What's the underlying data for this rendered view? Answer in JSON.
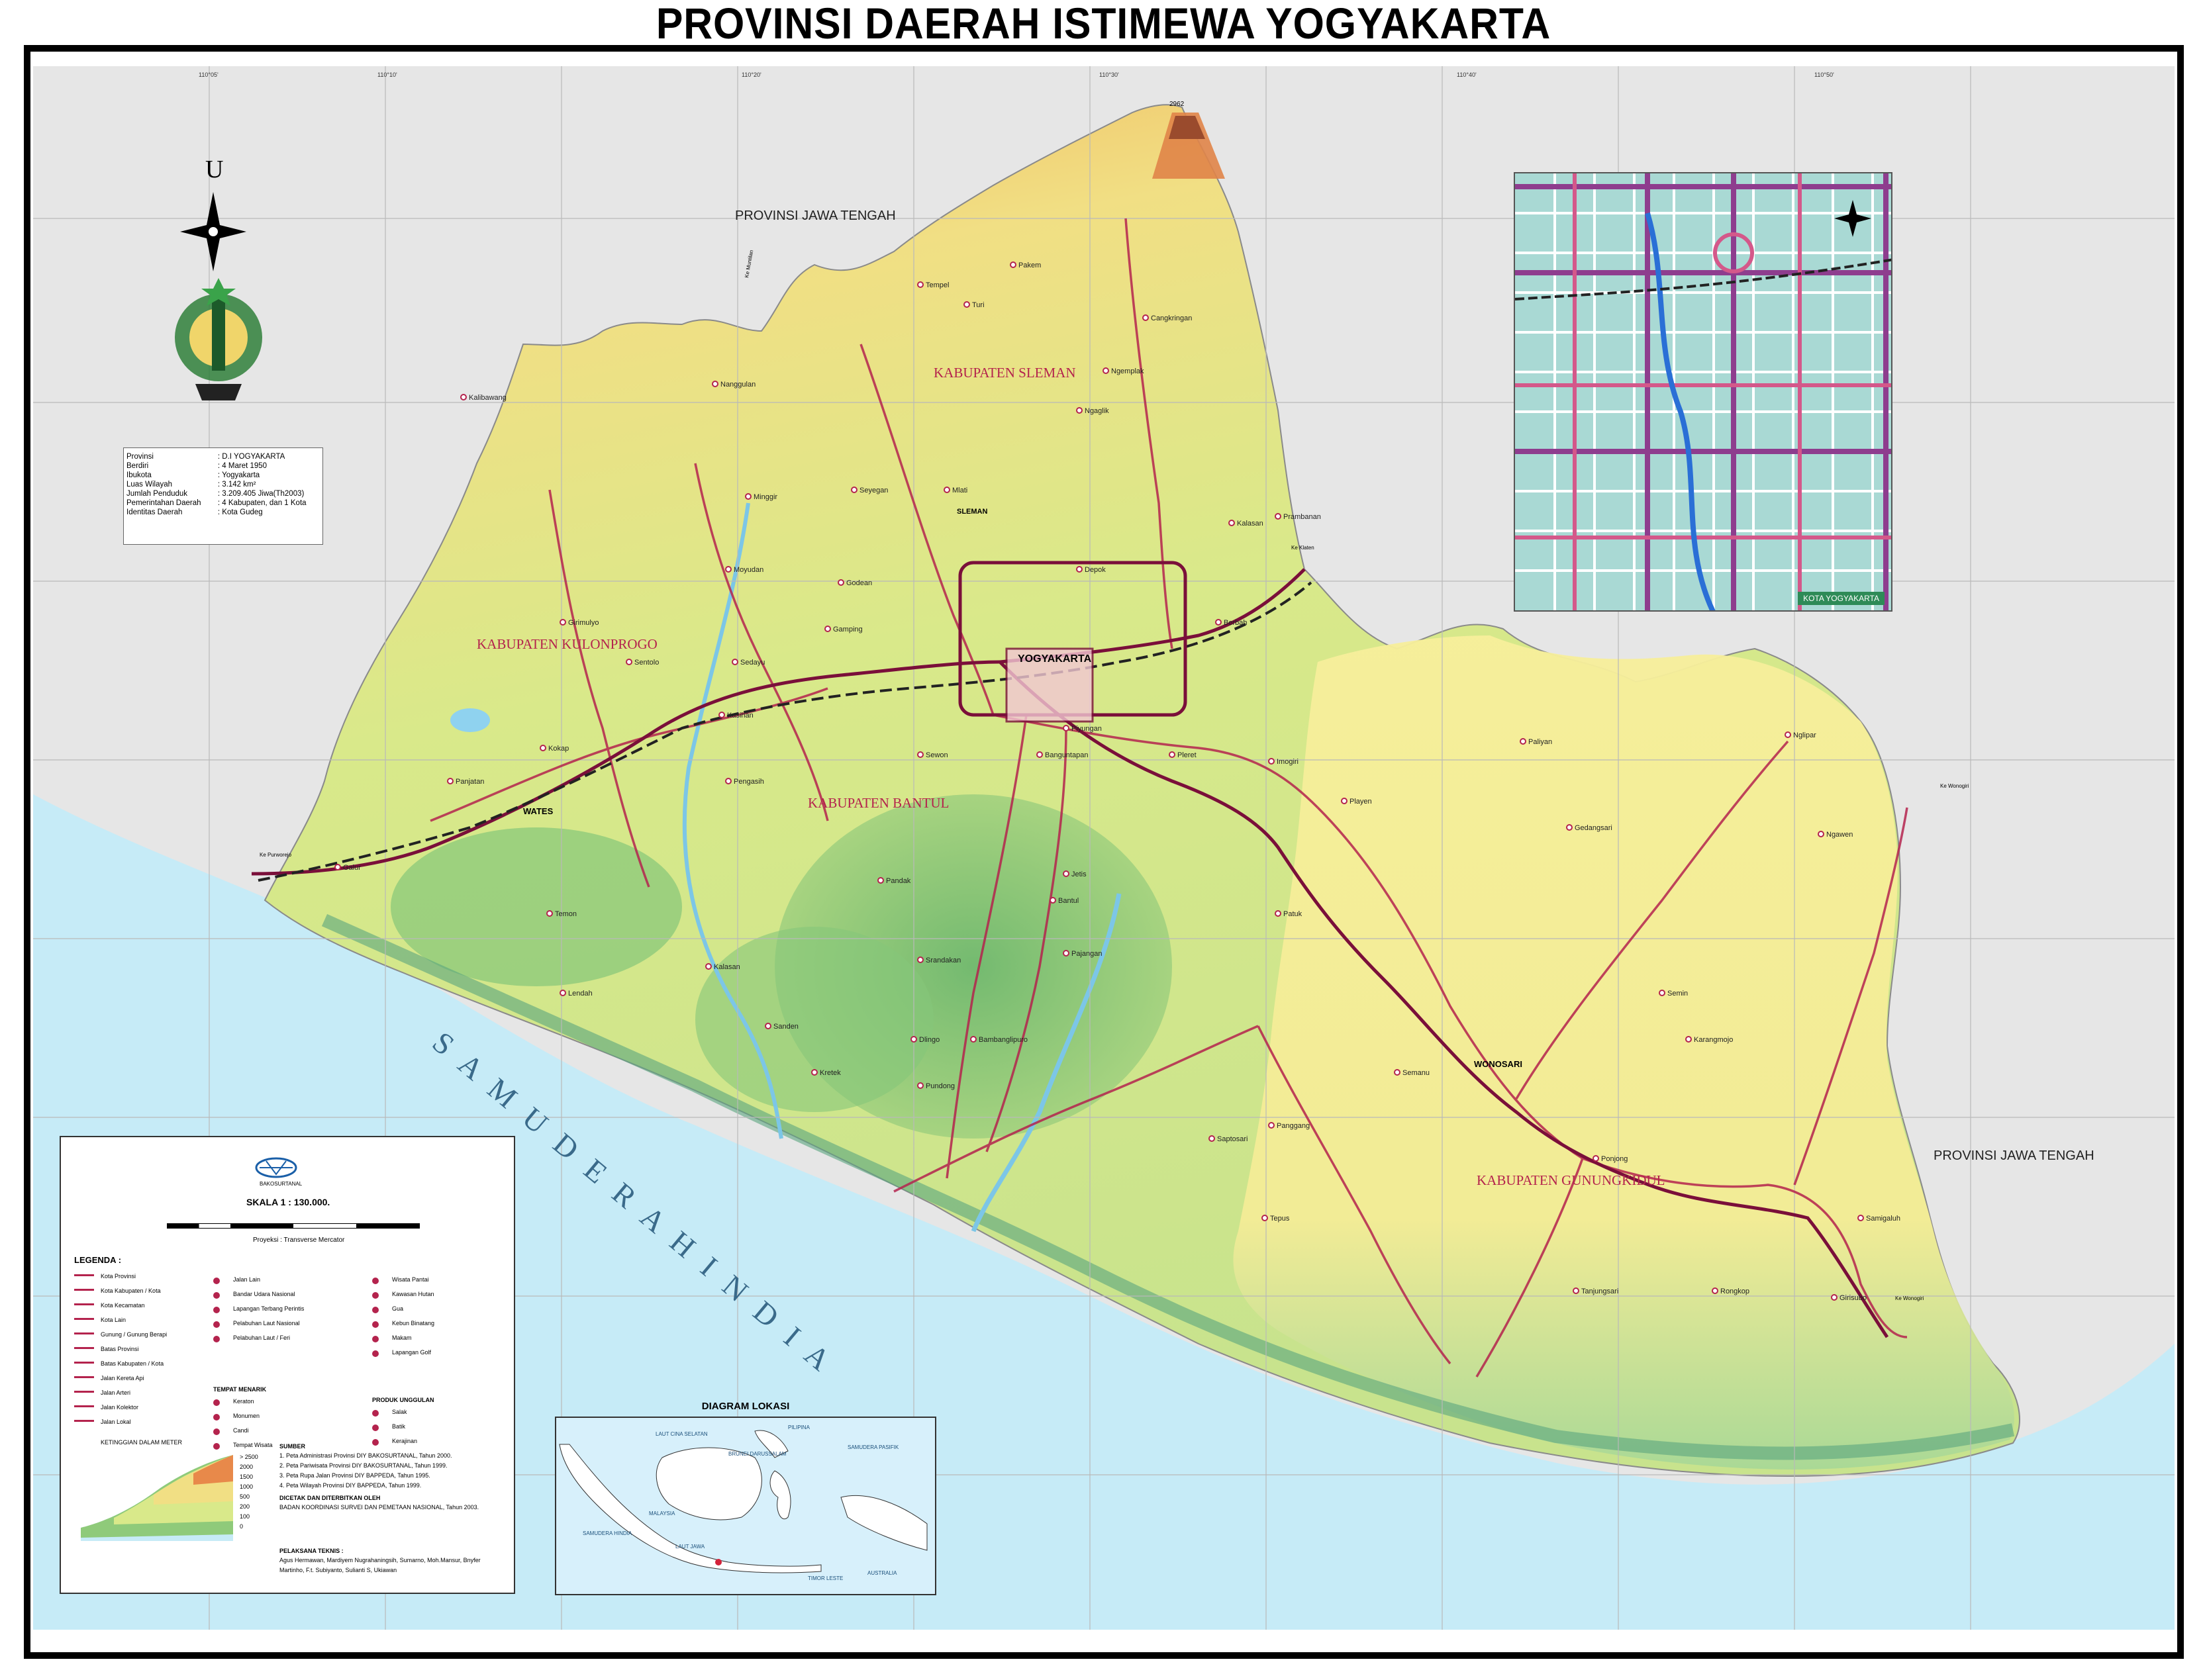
{
  "title": "PROVINSI DAERAH ISTIMEWA YOGYAKARTA",
  "north_letter": "U",
  "neighbours": {
    "north": "PROVINSI JAWA TENGAH",
    "east": "PROVINSI JAWA TENGAH"
  },
  "sea_name": "S A M U D E R A   H I N D I A",
  "regencies": {
    "sleman": "KABUPATEN SLEMAN",
    "kulonprogo": "KABUPATEN KULONPROGO",
    "bantul": "KABUPATEN BANTUL",
    "gunungkidul": "KABUPATEN GUNUNGKIDUL"
  },
  "cities": {
    "yogyakarta": "YOGYAKARTA",
    "wonosari": "WONOSARI",
    "wates": "WATES",
    "sleman": "SLEMAN"
  },
  "towns": [
    "Tempel",
    "Turi",
    "Pakem",
    "Cangkringan",
    "Ngemplak",
    "Ngaglik",
    "Kalasan",
    "Prambanan",
    "Berbah",
    "Depok",
    "Mlati",
    "Seyegan",
    "Minggir",
    "Moyudan",
    "Godean",
    "Gamping",
    "Sedayu",
    "Kasihan",
    "Sewon",
    "Banguntapan",
    "Piyungan",
    "Pleret",
    "Imogiri",
    "Jetis",
    "Bantul",
    "Pajangan",
    "Pandak",
    "Srandakan",
    "Sanden",
    "Kretek",
    "Pundong",
    "Bambanglipuro",
    "Dlingo",
    "Patuk",
    "Playen",
    "Semanu",
    "Ponjong",
    "Karangmojo",
    "Semin",
    "Ngawen",
    "Nglipar",
    "Gedangsari",
    "Paliyan",
    "Panggang",
    "Saptosari",
    "Tepus",
    "Tanjungsari",
    "Rongkop",
    "Girisubo",
    "Samigaluh",
    "Kalibawang",
    "Nanggulan",
    "Girimulyo",
    "Sentolo",
    "Pengasih",
    "Kokap",
    "Panjatan",
    "Temon",
    "Galur",
    "Lendah",
    "Kalasan"
  ],
  "routes": {
    "to_klaten": "Ke Klaten",
    "to_wonogiri_1": "Ke Wonogiri",
    "to_wonogiri_2": "Ke Wonogiri",
    "to_purworejo": "Ke Purworejo",
    "to_muntilan": "Ke Muntilan"
  },
  "peak": "2962",
  "inset": {
    "label": "KOTA YOGYAKARTA"
  },
  "info_box": {
    "rows": [
      {
        "k": "Provinsi",
        "v": ": D.I YOGYAKARTA"
      },
      {
        "k": "Berdiri",
        "v": ": 4 Maret 1950"
      },
      {
        "k": "Ibukota",
        "v": ": Yogyakarta"
      },
      {
        "k": "Luas Wilayah",
        "v": ": 3.142 km²"
      },
      {
        "k": "Jumlah Penduduk",
        "v": ": 3.209.405 Jiwa(Th2003)"
      },
      {
        "k": "Pemerintahan Daerah",
        "v": ": 4 Kabupaten, dan 1 Kota"
      },
      {
        "k": "Identitas Daerah",
        "v": ": Kota Gudeg"
      }
    ]
  },
  "legend": {
    "agency": "BAKOSURTANAL",
    "scale": "SKALA  1 : 130.000.",
    "projection": "Proyeksi : Transverse Mercator",
    "heading": "LEGENDA :",
    "col1": [
      "Kota Provinsi",
      "Kota Kabupaten / Kota",
      "Kota Kecamatan",
      "Kota Lain",
      "Gunung / Gunung Berapi",
      "Batas Provinsi",
      "Batas Kabupaten / Kota",
      "Jalan Kereta Api",
      "Jalan Arteri",
      "Jalan Kolektor",
      "Jalan Lokal"
    ],
    "col2": [
      "Jalan Lain",
      "Bandar Udara Nasional",
      "Lapangan Terbang Perintis",
      "Pelabuhan Laut Nasional",
      "Pelabuhan Laut / Feri"
    ],
    "col2_heading": "TEMPAT MENARIK",
    "col2b": [
      "Keraton",
      "Monumen",
      "Candi",
      "Tempat Wisata"
    ],
    "col3": [
      "Wisata Pantai",
      "Kawasan Hutan",
      "Gua",
      "Kebun Binatang",
      "Makam",
      "Lapangan Golf"
    ],
    "col3_heading": "PRODUK UNGGULAN",
    "col3b": [
      "Salak",
      "Batik",
      "Kerajinan"
    ],
    "elevation_title": "KETINGGIAN DALAM METER",
    "elevations": [
      "> 2500",
      "2000",
      "1500",
      "1000",
      "500",
      "200",
      "100",
      "0"
    ],
    "sources_title": "SUMBER",
    "sources": [
      "1. Peta Administrasi Provinsi DIY BAKOSURTANAL, Tahun 2000.",
      "2. Peta Pariwisata Provinsi DIY BAKOSURTANAL, Tahun 1999.",
      "3. Peta Rupa Jalan Provinsi DIY BAPPEDA, Tahun 1995.",
      "4. Peta Wilayah Provinsi DIY BAPPEDA, Tahun 1999."
    ],
    "printed_title": "DICETAK DAN DITERBITKAN OLEH",
    "printed": "BADAN KOORDINASI SURVEI DAN PEMETAAN NASIONAL, Tahun 2003.",
    "staff_title": "PELAKSANA TEKNIS :",
    "staff": "Agus Hermawan, Mardiyem Nugrahaningsih, Sumarno, Moh.Mansur, Bnyfer Martinho, F.t. Subiyanto, Sulianti S, Ukiawan"
  },
  "location_diagram": {
    "title": "DIAGRAM LOKASI",
    "labels": [
      "LAUT CINA SELATAN",
      "BRUNEI DARUSSALAM",
      "MALAYSIA",
      "PILIPINA",
      "SAMUDERA PASIFIK",
      "LAUT JAWA",
      "SAMUDERA HINDIA",
      "TIMOR LESTE",
      "AUSTRALIA"
    ]
  },
  "colors": {
    "sea": "#c6ebf7",
    "outside": "#e6e6e6",
    "low": "#6fb86e",
    "mid": "#cfe48a",
    "high": "#f3e58e",
    "peak": "#e8894a",
    "road": "#b4234d"
  }
}
